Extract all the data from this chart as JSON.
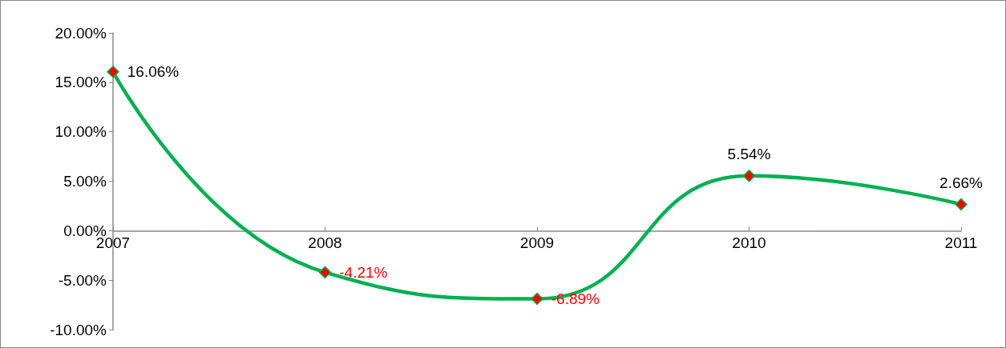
{
  "chart_data": {
    "type": "line",
    "categories": [
      "2007",
      "2008",
      "2009",
      "2010",
      "2011"
    ],
    "series": [
      {
        "color": "#00b050",
        "values": [
          16.06,
          -4.21,
          -6.89,
          5.54,
          2.66
        ],
        "value_labels": [
          "16.06%",
          "-4.21%",
          "-6.89%",
          "5.54%",
          "2.66%"
        ]
      }
    ],
    "ylim": [
      -10,
      20
    ],
    "yticks": [
      {
        "value": -10,
        "label": "-10.00%"
      },
      {
        "value": -5,
        "label": "-5.00%"
      },
      {
        "value": 0,
        "label": "0.00%"
      },
      {
        "value": 5,
        "label": "5.00%"
      },
      {
        "value": 10,
        "label": "10.00%"
      },
      {
        "value": 15,
        "label": "15.00%"
      },
      {
        "value": 20,
        "label": "20.00%"
      }
    ],
    "marker": "diamond",
    "line_style": "solid"
  }
}
